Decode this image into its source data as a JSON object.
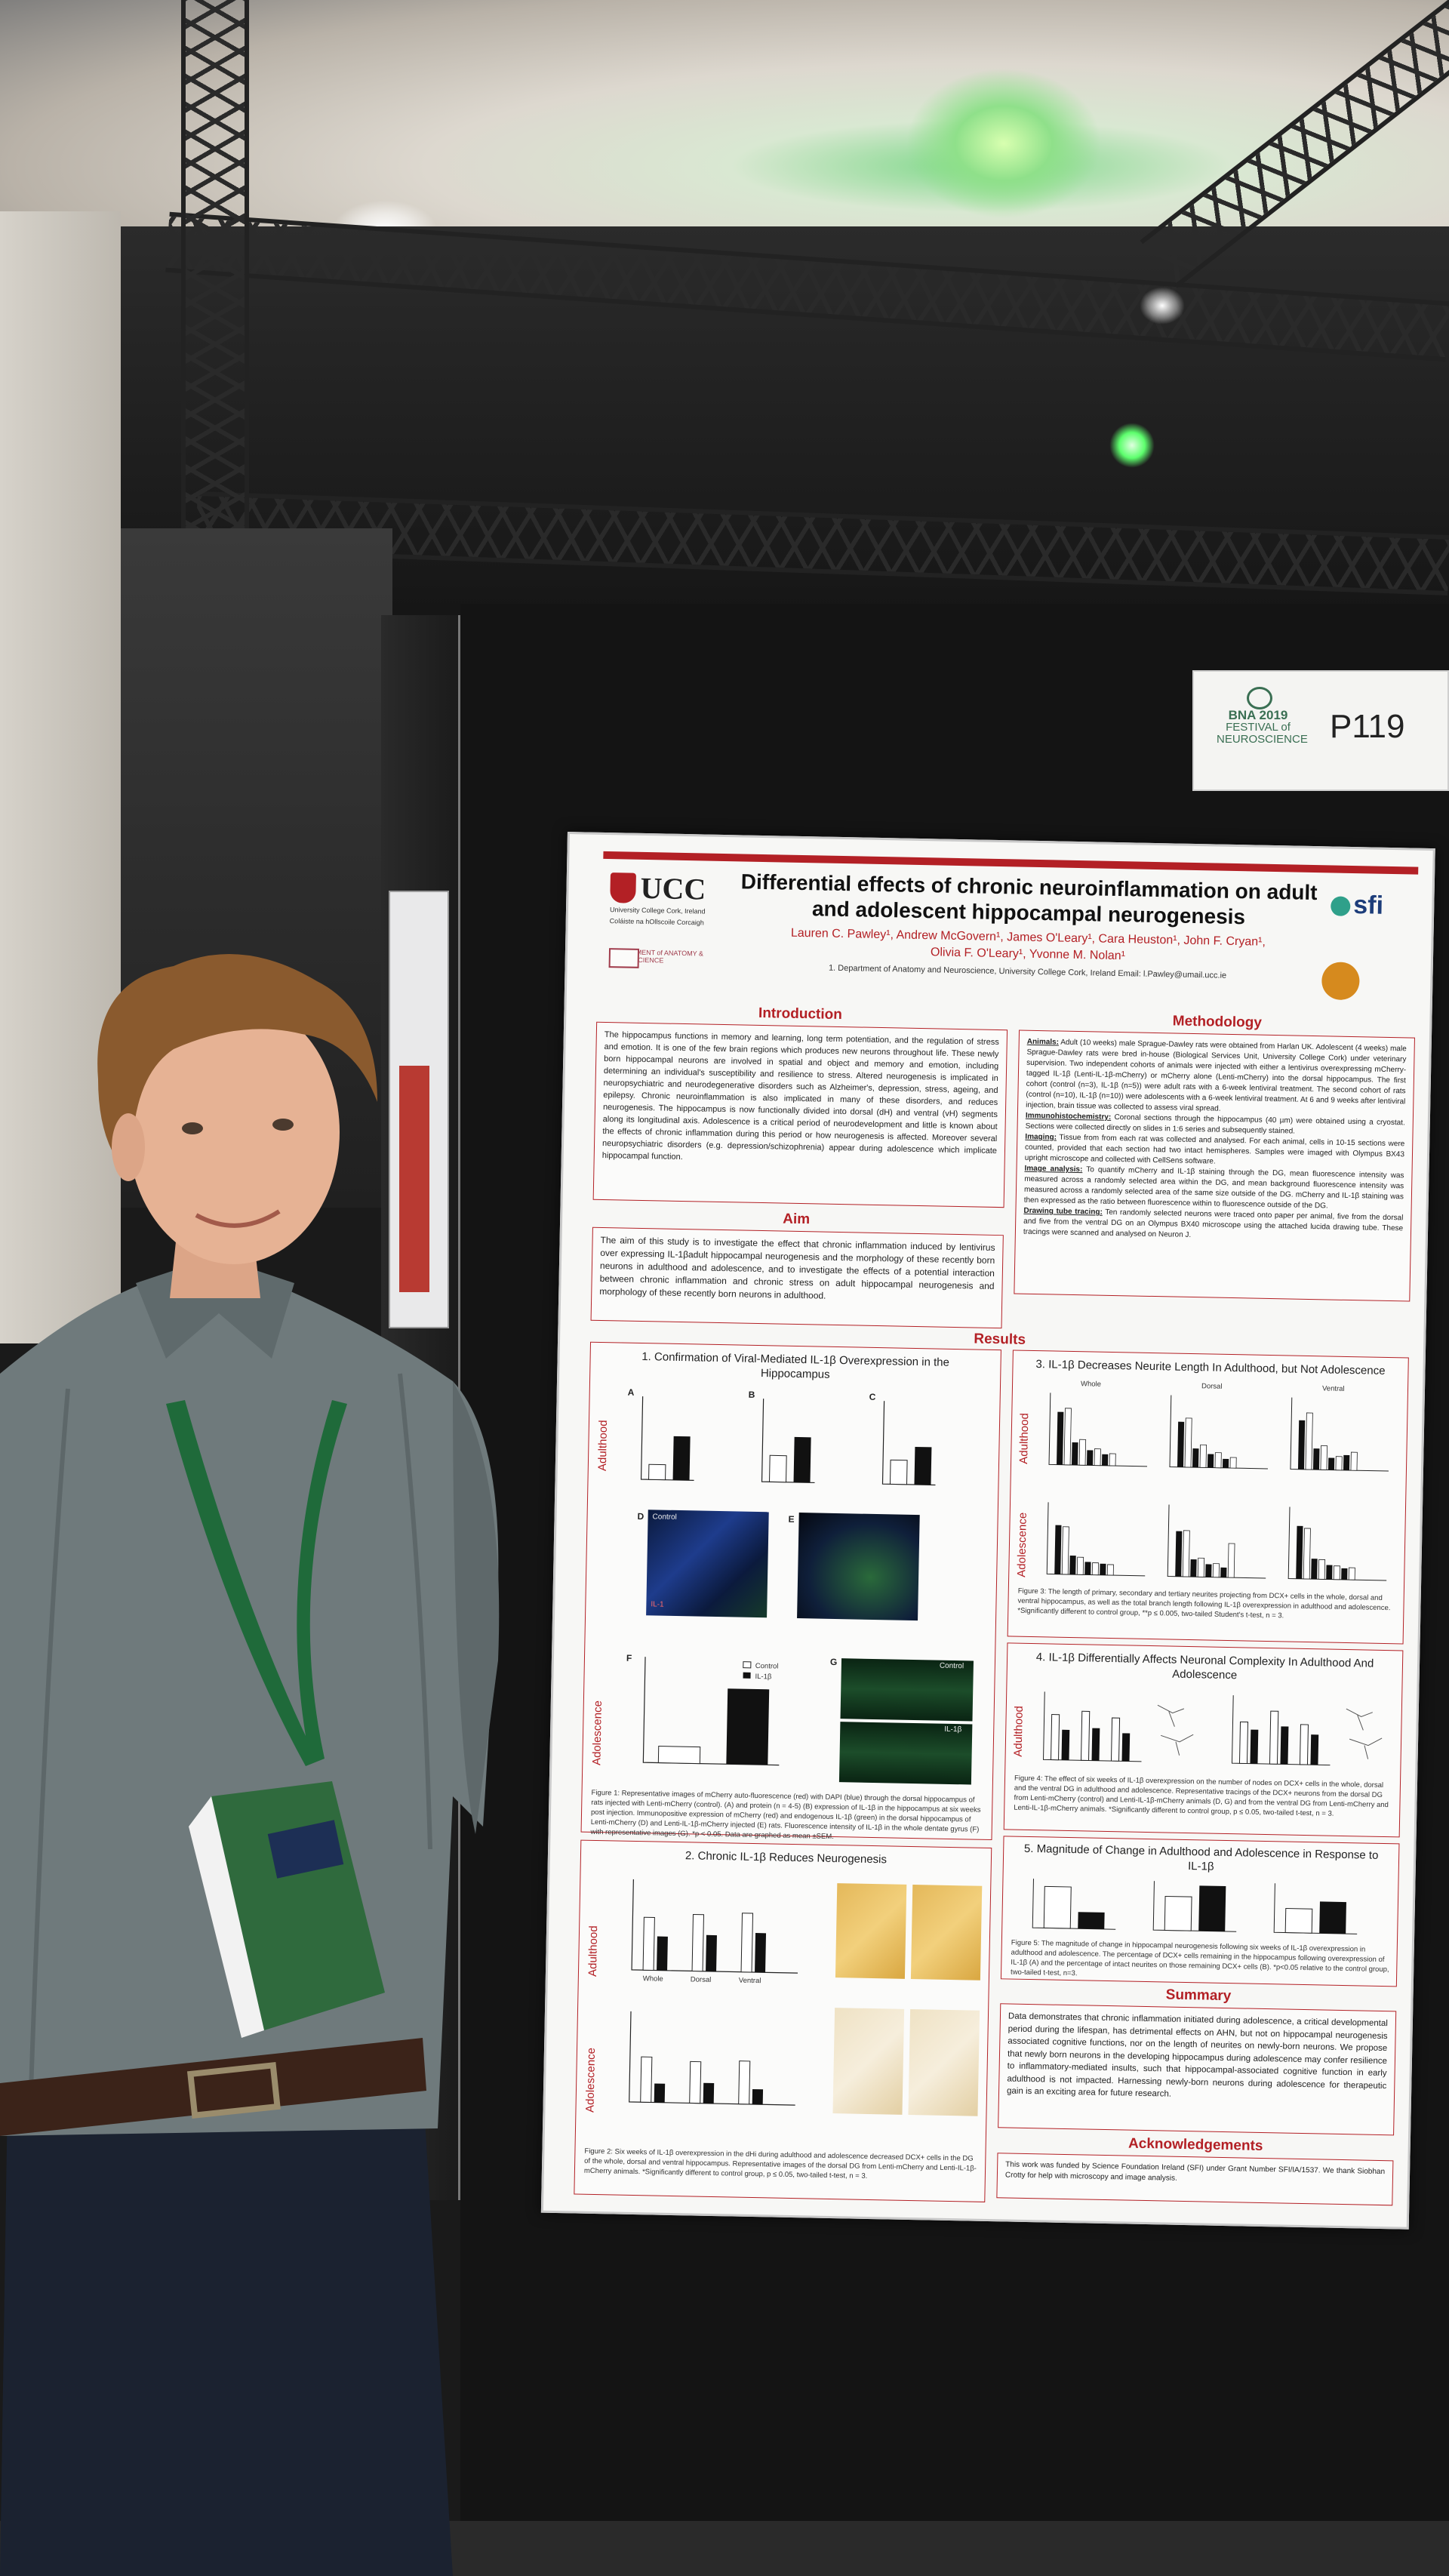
{
  "scene": {
    "poster_number": "P119",
    "event_logo_lines": [
      "BNA 2019",
      "FESTIVAL of",
      "NEUROSCIENCE"
    ],
    "accent_colors": {
      "poster_red": "#b32025",
      "bna_green": "#3a6f53",
      "shirt_gray": "#6f7a7c"
    }
  },
  "poster": {
    "university": {
      "name": "UCC",
      "sub1": "University College Cork, Ireland",
      "sub2": "Coláiste na hOllscoile Corcaigh"
    },
    "funder": "sfi",
    "title": "Differential effects of chronic neuroinflammation on adult and adolescent hippocampal neurogenesis",
    "authors_line1": "Lauren C. Pawley¹, Andrew McGovern¹, James O'Leary¹, Cara Heuston¹, John F. Cryan¹,",
    "authors_line2": "Olivia F. O'Leary¹, Yvonne M. Nolan¹",
    "affiliation": "1. Department of Anatomy and Neuroscience, University College Cork, Ireland        Email: l.Pawley@umail.ucc.ie",
    "department_logo": "DEPARTMENT of ANATOMY & NEUROSCIENCE",
    "sections": {
      "introduction": {
        "heading": "Introduction",
        "text": "The hippocampus functions in memory and learning, long term potentiation, and the regulation of stress and emotion. It is one of the few brain regions which produces new neurons throughout life. These newly born hippocampal neurons are involved in spatial and object and memory and emotion, including determining an individual's susceptibility and resilience to stress. Altered neurogenesis is implicated in neuropsychiatric and neurodegenerative disorders such as Alzheimer's, depression, stress, ageing, and epilepsy. Chronic neuroinflammation is also implicated in many of these disorders, and reduces neurogenesis. The hippocampus is now functionally divided into dorsal (dH) and ventral (vH) segments along its longitudinal axis. Adolescence is a critical period of neurodevelopment and little is known about the effects of chronic inflammation during this period or how neurogenesis is affected. Moreover several neuropsychiatric disorders (e.g. depression/schizophrenia) appear during adolescence which implicate hippocampal function."
      },
      "aim": {
        "heading": "Aim",
        "text": "The aim of this study is to investigate the effect that chronic inflammation induced by lentivirus over expressing IL-1βadult hippocampal neurogenesis and the morphology of these recently born neurons in adulthood and adolescence, and to investigate the effects of a potential interaction between chronic inflammation and chronic stress on adult hippocampal neurogenesis and morphology of these recently born neurons in adulthood."
      },
      "methodology": {
        "heading": "Methodology",
        "paragraphs": [
          {
            "label": "Animals:",
            "text": " Adult (10 weeks) male Sprague-Dawley rats were obtained from Harlan UK. Adolescent (4 weeks) male Sprague-Dawley rats were bred in-house (Biological Services Unit, University College Cork) under veterinary supervision. Two independent cohorts of animals were injected with either a lentivirus overexpressing mCherry-tagged IL-1β (Lenti-IL-1β-mCherry) or mCherry alone (Lenti-mCherry) into the dorsal hippocampus. The first cohort (control (n=3), IL-1β (n=5)) were adult rats with a 6-week lentiviral treatment. The second cohort of rats (control (n=10), IL-1β (n=10)) were adolescents with a 6-week lentiviral treatment. At 6 and 9 weeks after lentiviral injection, brain tissue was collected to assess viral spread."
          },
          {
            "label": "Immunohistochemistry:",
            "text": " Coronal sections through the hippocampus (40 µm) were obtained using a cryostat. Sections were collected directly on slides in 1:6 series and subsequently stained."
          },
          {
            "label": "Imaging:",
            "text": " Tissue from from each rat was collected and analysed. For each animal, cells in 10-15 sections were counted, provided that each section had two intact hemispheres. Samples were imaged with Olympus BX43 upright microscope and collected with CellSens software."
          },
          {
            "label": "Image analysis:",
            "text": " To quantify mCherry and IL-1β staining through the DG, mean fluorescence intensity was measured across a randomly selected area within the DG, and mean background fluorescence intensity was measured across a randomly selected area of the same size outside of the DG. mCherry and IL-1β staining was then expressed as the ratio between fluorescence within to fluorescence outside of the DG."
          },
          {
            "label": "Drawing tube tracing:",
            "text": " Ten randomly selected neurons were traced onto paper per animal, five from the dorsal and five from the ventral DG on an Olympus BX40 microscope using the attached lucida drawing tube. These tracings were scanned and analysed on Neuron J."
          }
        ]
      },
      "results_heading": "Results",
      "fig1": {
        "title": "1. Confirmation of Viral-Mediated IL-1β Overexpression in the Hippocampus",
        "row_adult": "Adulthood",
        "row_adol": "Adolescence",
        "letters": [
          "A",
          "B",
          "C",
          "D",
          "E",
          "F",
          "G"
        ],
        "legend": [
          "Control",
          "IL-1β"
        ],
        "mic_labels": [
          "Control",
          "IL-1",
          "Control",
          "IL-1β"
        ],
        "caption": "Figure 1: Representative images of mCherry auto-fluorescence (red) with DAPI (blue) through the dorsal hippocampus of rats injected with Lenti-mCherry (control). (A) and protein (n = 4-5) (B) expression of IL-1β in the hippocampus at six weeks post injection. Immunopositive expression of mCherry (red) and endogenous IL-1β (green) in the dorsal hippocampus of Lenti-mCherry (D) and Lenti-IL-1β-mCherry injected (E) rats. Fluorescence intensity of IL-1β in the whole dentate gyrus (F) with representative images (G). *p < 0.05. Data are graphed as mean ±SEM."
      },
      "fig2": {
        "title": "2. Chronic IL-1β Reduces Neurogenesis",
        "row_adult": "Adulthood",
        "row_adol": "Adolescence",
        "groups": [
          "Whole",
          "Dorsal",
          "Ventral"
        ],
        "caption": "Figure 2: Six weeks of IL-1β overexpression in the dHi during adulthood and adolescence decreased DCX+ cells in the DG of the whole, dorsal and ventral hippocampus. Representative images of the dorsal DG from Lenti-mCherry and Lenti-IL-1β-mCherry animals. *Significantly different to control group, p ≤ 0.05, two-tailed t-test, n = 3."
      },
      "fig3": {
        "title": "3. IL-1β Decreases Neurite Length In Adulthood, but Not Adolescence",
        "groups": [
          "Whole",
          "Dorsal",
          "Ventral"
        ],
        "caption": "Figure 3: The length of primary, secondary and tertiary neurites projecting from DCX+ cells in the whole, dorsal and ventral hippocampus, as well as the total branch length following IL-1β overexpression in adulthood and adolescence. *Significantly different to control group, **p ≤ 0.005, two-tailed Student's t-test, n = 3."
      },
      "fig4": {
        "title": "4. IL-1β Differentially Affects Neuronal Complexity In Adulthood And Adolescence",
        "caption": "Figure 4: The effect of six weeks of IL-1β overexpression on the number of nodes on DCX+ cells in the whole, dorsal and the ventral DG in adulthood and adolescence. Representative tracings of the DCX+ neurons from the dorsal DG from Lenti-mCherry (control) and Lenti-IL-1β-mCherry animals (D, G) and from the ventral DG from Lenti-mCherry and Lenti-IL-1β-mCherry animals. *Significantly different to control group, p ≤ 0.05, two-tailed t-test, n = 3."
      },
      "fig5": {
        "title": "5. Magnitude of Change in Adulthood and Adolescence in Response to IL-1β",
        "caption": "Figure 5: The magnitude of change in hippocampal neurogenesis following six weeks of IL-1β overexpression in adulthood and adolescence. The percentage of DCX+ cells remaining in the hippocampus following overexpression of IL-1β (A) and the percentage of intact neurites on those remaining DCX+ cells (B). *p<0.05 relative to the control group, two-tailed t-test, n=3."
      },
      "summary": {
        "heading": "Summary",
        "text": "Data demonstrates that chronic inflammation initiated during adolescence, a critical developmental period during the lifespan, has detrimental effects on AHN, but not on hippocampal neurogenesis associated cognitive functions, nor on the length of neurites on newly-born neurons. We propose that newly born neurons in the developing hippocampus during adolescence may confer resilience to inflammatory-mediated insults, such that hippocampal-associated cognitive function in early adulthood is not impacted. Harnessing newly-born neurons during adolescence for therapeutic gain is an exciting area for future research."
      },
      "acknowledgements": {
        "heading": "Acknowledgements",
        "text": "This work was funded by Science Foundation Ireland (SFI) under Grant Number SFI/IA/1537. We thank Siobhan Crotty for help with microscopy and image analysis."
      }
    }
  }
}
